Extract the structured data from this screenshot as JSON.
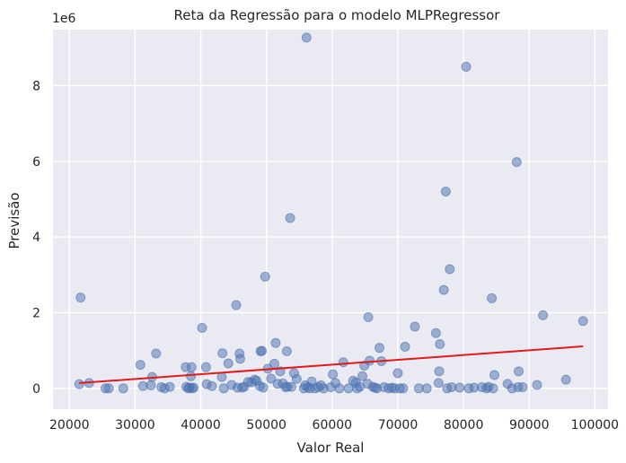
{
  "chart_data": {
    "type": "scatter",
    "title": "Reta da Regressão para o modelo MLPRegressor",
    "xlabel": "Valor Real",
    "ylabel": "Previsão",
    "y_offset_text": "1e6",
    "xlim": [
      17500,
      102000
    ],
    "ylim": [
      -550000,
      9480000
    ],
    "xticks": [
      20000,
      30000,
      40000,
      50000,
      60000,
      70000,
      80000,
      90000,
      100000
    ],
    "yticks": [
      0,
      2000000,
      4000000,
      6000000,
      8000000
    ],
    "yticklabels": [
      "0",
      "2",
      "4",
      "6",
      "8"
    ],
    "grid": true,
    "background": "#eaeaf2",
    "point_color": "#4c72b0",
    "line_color": "#e41a1c",
    "regression_line": {
      "x": [
        21500,
        98200
      ],
      "y": [
        140000,
        1110000
      ]
    },
    "points": [
      [
        21500,
        110000
      ],
      [
        21700,
        2400000
      ],
      [
        23000,
        140000
      ],
      [
        25500,
        0
      ],
      [
        26000,
        0
      ],
      [
        28200,
        0
      ],
      [
        30800,
        620000
      ],
      [
        31200,
        60000
      ],
      [
        32400,
        80000
      ],
      [
        32600,
        300000
      ],
      [
        33200,
        920000
      ],
      [
        34000,
        30000
      ],
      [
        34500,
        0
      ],
      [
        35300,
        40000
      ],
      [
        37700,
        560000
      ],
      [
        37800,
        40000
      ],
      [
        38100,
        0
      ],
      [
        38300,
        20000
      ],
      [
        38500,
        320000
      ],
      [
        38600,
        560000
      ],
      [
        38700,
        0
      ],
      [
        38900,
        20000
      ],
      [
        40200,
        1600000
      ],
      [
        40800,
        560000
      ],
      [
        40900,
        110000
      ],
      [
        41700,
        60000
      ],
      [
        43200,
        300000
      ],
      [
        43300,
        930000
      ],
      [
        43500,
        0
      ],
      [
        44200,
        660000
      ],
      [
        44700,
        90000
      ],
      [
        45400,
        2200000
      ],
      [
        45600,
        20000
      ],
      [
        45900,
        920000
      ],
      [
        46000,
        780000
      ],
      [
        46300,
        20000
      ],
      [
        46600,
        40000
      ],
      [
        47200,
        170000
      ],
      [
        47700,
        160000
      ],
      [
        48200,
        230000
      ],
      [
        48500,
        200000
      ],
      [
        49000,
        60000
      ],
      [
        49100,
        980000
      ],
      [
        49300,
        990000
      ],
      [
        49500,
        20000
      ],
      [
        49800,
        2950000
      ],
      [
        50200,
        520000
      ],
      [
        50700,
        260000
      ],
      [
        51200,
        650000
      ],
      [
        51400,
        1200000
      ],
      [
        51700,
        120000
      ],
      [
        52100,
        450000
      ],
      [
        52500,
        130000
      ],
      [
        52900,
        30000
      ],
      [
        53100,
        980000
      ],
      [
        53200,
        40000
      ],
      [
        53600,
        4500000
      ],
      [
        53800,
        40000
      ],
      [
        54200,
        400000
      ],
      [
        54600,
        250000
      ],
      [
        55700,
        0
      ],
      [
        55900,
        80000
      ],
      [
        56100,
        9270000
      ],
      [
        56300,
        30000
      ],
      [
        56600,
        0
      ],
      [
        56900,
        180000
      ],
      [
        57400,
        0
      ],
      [
        57900,
        30000
      ],
      [
        58300,
        80000
      ],
      [
        58700,
        0
      ],
      [
        59800,
        30000
      ],
      [
        60100,
        370000
      ],
      [
        60500,
        140000
      ],
      [
        61100,
        0
      ],
      [
        61700,
        690000
      ],
      [
        62500,
        0
      ],
      [
        63200,
        200000
      ],
      [
        63600,
        150000
      ],
      [
        63800,
        0
      ],
      [
        64200,
        40000
      ],
      [
        64600,
        320000
      ],
      [
        64900,
        600000
      ],
      [
        65400,
        120000
      ],
      [
        65500,
        1880000
      ],
      [
        65700,
        730000
      ],
      [
        66200,
        40000
      ],
      [
        66500,
        20000
      ],
      [
        66800,
        0
      ],
      [
        67200,
        1070000
      ],
      [
        67500,
        720000
      ],
      [
        67900,
        30000
      ],
      [
        68600,
        0
      ],
      [
        69100,
        20000
      ],
      [
        69500,
        0
      ],
      [
        70000,
        400000
      ],
      [
        70300,
        0
      ],
      [
        70800,
        0
      ],
      [
        71100,
        1100000
      ],
      [
        72600,
        1630000
      ],
      [
        73200,
        0
      ],
      [
        74400,
        0
      ],
      [
        75800,
        1460000
      ],
      [
        76200,
        140000
      ],
      [
        76300,
        450000
      ],
      [
        76400,
        1170000
      ],
      [
        77000,
        2600000
      ],
      [
        77300,
        5200000
      ],
      [
        77500,
        0
      ],
      [
        77900,
        3150000
      ],
      [
        78200,
        30000
      ],
      [
        79400,
        20000
      ],
      [
        80400,
        8500000
      ],
      [
        80800,
        0
      ],
      [
        81600,
        20000
      ],
      [
        82800,
        30000
      ],
      [
        83500,
        0
      ],
      [
        83800,
        40000
      ],
      [
        84300,
        2380000
      ],
      [
        84500,
        0
      ],
      [
        84700,
        350000
      ],
      [
        86700,
        120000
      ],
      [
        87400,
        0
      ],
      [
        88100,
        5980000
      ],
      [
        88300,
        30000
      ],
      [
        88400,
        450000
      ],
      [
        89000,
        30000
      ],
      [
        91200,
        90000
      ],
      [
        92100,
        1930000
      ],
      [
        95600,
        230000
      ],
      [
        98200,
        1780000
      ]
    ]
  }
}
